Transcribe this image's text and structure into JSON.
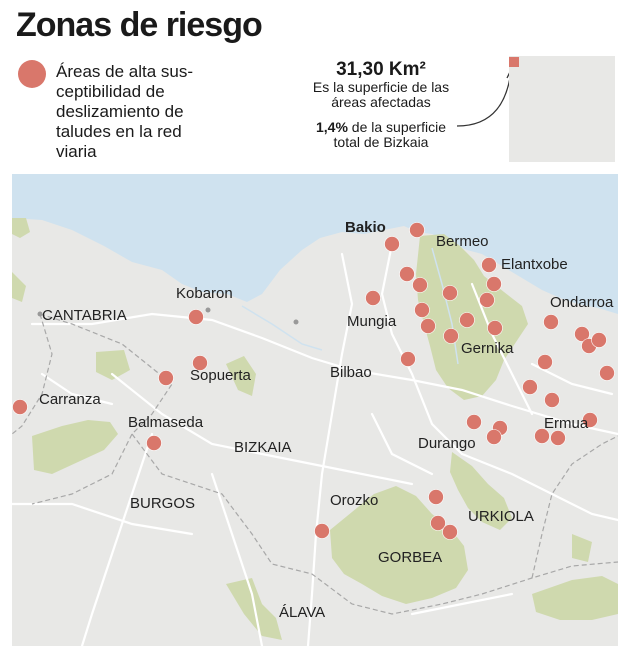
{
  "title": "Zonas de riesgo",
  "legend": {
    "label": "Áreas de alta sus-ceptibilidad de deslizamiento de taludes en la red viaria",
    "line1": "Áreas de alta sus-",
    "line2": "ceptibilidad de",
    "line3": "deslizamiento de",
    "line4": "taludes en la red",
    "line5": "viaria",
    "color": "#d9776b"
  },
  "stats": {
    "area_value": "31,30 Km²",
    "area_caption_1": "Es la superficie de las",
    "area_caption_2": "áreas afectadas",
    "percent_value": "1,4%",
    "percent_caption_1": " de la superficie",
    "percent_caption_2": "total de Bizkaia"
  },
  "colors": {
    "sea": "#cfe2ef",
    "land": "#e8e8e6",
    "park": "#cfd9ae",
    "dot": "#d9776b",
    "road": "#ffffff",
    "border": "#999999"
  },
  "places": {
    "bakio": "Bakio",
    "bermeo": "Bermeo",
    "elantxobe": "Elantxobe",
    "ondarroa": "Ondarroa",
    "kobaron": "Kobaron",
    "cantabria": "CANTABRIA",
    "mungia": "Mungia",
    "gernika": "Gernika",
    "sopuerta": "Sopuerta",
    "bilbao": "Bilbao",
    "carranza": "Carranza",
    "ermua": "Ermua",
    "balmaseda": "Balmaseda",
    "bizkaia": "BIZKAIA",
    "durango": "Durango",
    "burgos": "BURGOS",
    "orozko": "Orozko",
    "urkiola": "URKIOLA",
    "gorbea": "GORBEA",
    "alava": "ÁLAVA"
  },
  "hazard_zone_count": 46
}
